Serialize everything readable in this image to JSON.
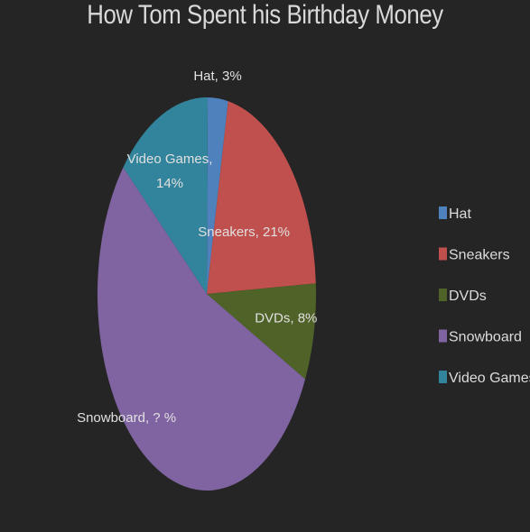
{
  "chart_data": {
    "type": "pie",
    "title": "How Tom Spent his Birthday Money",
    "categories": [
      "Hat",
      "Sneakers",
      "DVDs",
      "Snowboard",
      "Video Games"
    ],
    "values": [
      3,
      21,
      8,
      null,
      14
    ],
    "data_labels": [
      [
        "Hat, 3%"
      ],
      [
        "Sneakers, 21%"
      ],
      [
        "DVDs, 8%"
      ],
      [
        "Snowboard,  ? %"
      ],
      [
        "Video Games,",
        "14%"
      ]
    ],
    "colors": [
      "#4f81bd",
      "#c0504d",
      "#4f6228",
      "#8064a2",
      "#31849b"
    ],
    "legend_position": "right"
  }
}
